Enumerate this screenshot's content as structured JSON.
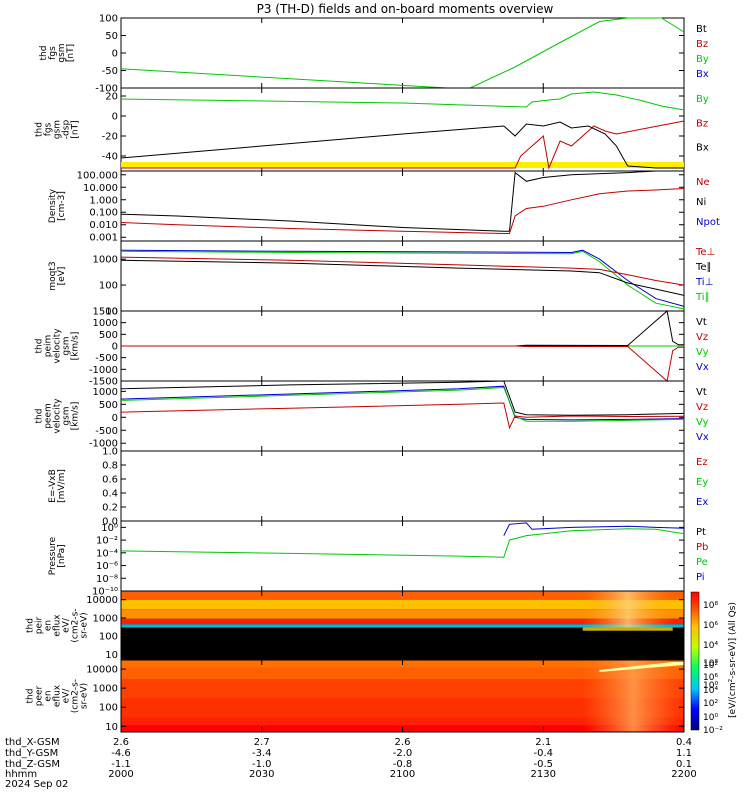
{
  "title": "P3 (TH-D) fields and on-board moments overview",
  "colors": {
    "black": "#000000",
    "red": "#c00000",
    "green": "#00c800",
    "blue": "#0000d0",
    "yellow": "#ffee00"
  },
  "chart_data": [
    {
      "type": "line",
      "ylabel": [
        "thd",
        "fgs",
        "gsm",
        "[nT]"
      ],
      "ylim": [
        -100,
        100
      ],
      "yticks": [
        "100",
        "50",
        "0",
        "-50",
        "-100"
      ],
      "ytick_values": [
        100,
        50,
        0,
        -50,
        -100
      ],
      "legend": [
        {
          "text": "Bt",
          "color": "black"
        },
        {
          "text": "Bz",
          "color": "red"
        },
        {
          "text": "By",
          "color": "green"
        },
        {
          "text": "Bx",
          "color": "blue"
        }
      ],
      "series": [
        {
          "color": "green",
          "x": [
            0,
            0.58,
            0.62,
            0.7,
            0.78,
            0.85,
            0.9,
            0.96,
            1.0
          ],
          "y": [
            -45,
            -100,
            -100,
            -40,
            30,
            90,
            120,
            120,
            60
          ]
        }
      ]
    },
    {
      "type": "line",
      "ylabel": [
        "thd",
        "fgs",
        "gsm",
        "-dsp",
        "[nT]"
      ],
      "ylim": [
        -55,
        28
      ],
      "yticks": [
        "20",
        "0",
        "-20",
        "-40"
      ],
      "ytick_values": [
        20,
        0,
        -20,
        -40
      ],
      "legend": [
        {
          "text": "By",
          "color": "green"
        },
        {
          "text": "Bz",
          "color": "red"
        },
        {
          "text": "Bx",
          "color": "black"
        }
      ],
      "flag_bar": "yellow",
      "series": [
        {
          "color": "green",
          "x": [
            0,
            0.5,
            0.72,
            0.73,
            0.76,
            0.78,
            0.8,
            0.84,
            0.88,
            0.92,
            0.96,
            1.0
          ],
          "y": [
            17,
            13,
            9,
            14,
            16,
            17,
            22,
            24,
            21,
            16,
            10,
            6
          ]
        },
        {
          "color": "red",
          "x": [
            0,
            0.7,
            0.71,
            0.75,
            0.76,
            0.78,
            0.8,
            0.82,
            0.84,
            0.86,
            0.88,
            1.0
          ],
          "y": [
            -52,
            -52,
            -40,
            -20,
            -52,
            -25,
            -30,
            -20,
            -10,
            -15,
            -18,
            -5
          ]
        },
        {
          "color": "black",
          "x": [
            0,
            0.25,
            0.5,
            0.68,
            0.7,
            0.72,
            0.75,
            0.78,
            0.8,
            0.83,
            0.86,
            0.88,
            0.9,
            0.95,
            1.0
          ],
          "y": [
            -42,
            -30,
            -18,
            -10,
            -20,
            -8,
            -10,
            -6,
            -12,
            -10,
            -18,
            -30,
            -50,
            -52,
            -52
          ]
        }
      ]
    },
    {
      "type": "line",
      "yscale": "log",
      "ylabel": [
        "Density",
        "[cm-3]"
      ],
      "ylim": [
        0.0005,
        200
      ],
      "yticks": [
        "100.000",
        "10.000",
        "1.000",
        "0.100",
        "0.010",
        "0.001"
      ],
      "ytick_values": [
        100,
        10,
        1,
        0.1,
        0.01,
        0.001
      ],
      "legend": [
        {
          "text": "Ne",
          "color": "red"
        },
        {
          "text": "Ni",
          "color": "black"
        },
        {
          "text": "Npot",
          "color": "blue"
        }
      ],
      "series": [
        {
          "color": "black",
          "x": [
            0,
            0.1,
            0.3,
            0.5,
            0.68,
            0.69,
            0.7,
            0.72,
            0.75,
            0.8,
            0.9,
            0.95,
            0.96,
            1.0
          ],
          "y": [
            0.07,
            0.05,
            0.02,
            0.006,
            0.003,
            0.003,
            150,
            30,
            60,
            100,
            150,
            200,
            200,
            200
          ]
        },
        {
          "color": "red",
          "x": [
            0,
            0.1,
            0.3,
            0.5,
            0.68,
            0.69,
            0.7,
            0.72,
            0.75,
            0.8,
            0.85,
            0.9,
            0.95,
            1.0
          ],
          "y": [
            0.015,
            0.01,
            0.005,
            0.003,
            0.002,
            0.002,
            0.05,
            0.2,
            0.3,
            1,
            3,
            5,
            6,
            8
          ]
        }
      ]
    },
    {
      "type": "line",
      "yscale": "log",
      "ylabel": [
        "moqt3",
        "[eV]"
      ],
      "ylim": [
        10,
        5000
      ],
      "yticks": [
        "1000",
        "100",
        "10"
      ],
      "ytick_values": [
        1000,
        100,
        10
      ],
      "legend": [
        {
          "text": "Te⊥",
          "color": "red"
        },
        {
          "text": "Te∥",
          "color": "black"
        },
        {
          "text": "Ti⊥",
          "color": "blue"
        },
        {
          "text": "Ti∥",
          "color": "green"
        }
      ],
      "series": [
        {
          "color": "blue",
          "x": [
            0,
            0.3,
            0.6,
            0.8,
            0.82,
            0.85,
            0.9,
            0.95,
            1.0
          ],
          "y": [
            2200,
            2000,
            1900,
            1800,
            2200,
            1000,
            150,
            30,
            15
          ]
        },
        {
          "color": "green",
          "x": [
            0,
            0.3,
            0.6,
            0.8,
            0.82,
            0.85,
            0.9,
            0.95,
            1.0
          ],
          "y": [
            2000,
            1800,
            1700,
            1600,
            2000,
            800,
            100,
            20,
            12
          ]
        },
        {
          "color": "red",
          "x": [
            0,
            0.3,
            0.6,
            0.8,
            0.85,
            0.9,
            0.95,
            1.0
          ],
          "y": [
            1200,
            900,
            600,
            450,
            400,
            250,
            150,
            100
          ]
        },
        {
          "color": "black",
          "x": [
            0,
            0.3,
            0.6,
            0.8,
            0.85,
            0.9,
            0.95,
            1.0
          ],
          "y": [
            900,
            700,
            450,
            350,
            300,
            120,
            70,
            40
          ]
        }
      ]
    },
    {
      "type": "line",
      "ylabel": [
        "thd",
        "peim",
        "velocity",
        "gsm",
        "[km/s]"
      ],
      "ylim": [
        -1500,
        1500
      ],
      "yticks": [
        "1500",
        "1000",
        "500",
        "0",
        "-500",
        "-1000",
        "-1500"
      ],
      "ytick_values": [
        1500,
        1000,
        500,
        0,
        -500,
        -1000,
        -1500
      ],
      "legend": [
        {
          "text": "Vt",
          "color": "black"
        },
        {
          "text": "Vz",
          "color": "red"
        },
        {
          "text": "Vy",
          "color": "green"
        },
        {
          "text": "Vx",
          "color": "blue"
        }
      ],
      "series": [
        {
          "color": "green",
          "x": [
            0,
            1.0
          ],
          "y": [
            0,
            0
          ]
        },
        {
          "color": "black",
          "x": [
            0,
            0.7,
            0.72,
            0.9,
            0.97,
            0.98,
            0.99,
            1.0
          ],
          "y": [
            0,
            0,
            30,
            20,
            1500,
            200,
            50,
            50
          ]
        },
        {
          "color": "red",
          "x": [
            0,
            0.7,
            0.72,
            0.9,
            0.97,
            0.98,
            0.99,
            1.0
          ],
          "y": [
            0,
            0,
            -20,
            -20,
            -1500,
            -200,
            -50,
            -50
          ]
        }
      ]
    },
    {
      "type": "line",
      "ylabel": [
        "thd",
        "peem",
        "velocity",
        "gsm",
        "[km/s]"
      ],
      "ylim": [
        -1300,
        1400
      ],
      "yticks": [
        "1000",
        "500",
        "0",
        "-500",
        "-1000"
      ],
      "ytick_values": [
        1000,
        500,
        0,
        -500,
        -1000
      ],
      "legend": [
        {
          "text": "Vt",
          "color": "black"
        },
        {
          "text": "Vz",
          "color": "red"
        },
        {
          "text": "Vy",
          "color": "green"
        },
        {
          "text": "Vx",
          "color": "blue"
        }
      ],
      "series": [
        {
          "color": "black",
          "x": [
            0,
            0.3,
            0.6,
            0.68,
            0.7,
            0.72,
            0.8,
            0.9,
            1.0
          ],
          "y": [
            1100,
            1250,
            1350,
            1400,
            200,
            100,
            80,
            100,
            150
          ]
        },
        {
          "color": "blue",
          "x": [
            0,
            0.3,
            0.6,
            0.68,
            0.7,
            0.72,
            0.8,
            0.9,
            1.0
          ],
          "y": [
            700,
            900,
            1100,
            1200,
            0,
            -80,
            -100,
            -80,
            -50
          ]
        },
        {
          "color": "green",
          "x": [
            0,
            0.3,
            0.6,
            0.68,
            0.7,
            0.72,
            0.8,
            0.9,
            1.0
          ],
          "y": [
            650,
            850,
            1050,
            1150,
            50,
            -150,
            -150,
            -120,
            -80
          ]
        },
        {
          "color": "red",
          "x": [
            0,
            0.3,
            0.6,
            0.68,
            0.69,
            0.7,
            0.72,
            0.8,
            0.9,
            1.0
          ],
          "y": [
            200,
            350,
            500,
            550,
            -400,
            50,
            0,
            50,
            30,
            40
          ]
        }
      ]
    },
    {
      "type": "line",
      "ylabel": [
        "E=-VxB",
        "[mV/m]"
      ],
      "ylim": [
        0,
        1
      ],
      "yticks": [
        "1.0",
        "0.8",
        "0.6",
        "0.4",
        "0.2",
        "0.0"
      ],
      "ytick_values": [
        1,
        0.8,
        0.6,
        0.4,
        0.2,
        0
      ],
      "legend": [
        {
          "text": "Ez",
          "color": "red"
        },
        {
          "text": "Ey",
          "color": "green"
        },
        {
          "text": "Ex",
          "color": "blue"
        }
      ],
      "series": []
    },
    {
      "type": "line",
      "yscale": "log",
      "ylabel": [
        "Pressure",
        "[nPa]"
      ],
      "ylim": [
        1e-10,
        10
      ],
      "yticks": [
        "10⁰",
        "10⁻²",
        "10⁻⁴",
        "10⁻⁶",
        "10⁻⁸",
        "10⁻¹⁰"
      ],
      "ytick_values": [
        1,
        0.01,
        0.0001,
        1e-06,
        1e-08,
        1e-10
      ],
      "legend": [
        {
          "text": "Pt",
          "color": "black"
        },
        {
          "text": "Pb",
          "color": "red"
        },
        {
          "text": "Pe",
          "color": "green"
        },
        {
          "text": "Pi",
          "color": "blue"
        }
      ],
      "series": [
        {
          "color": "green",
          "x": [
            0,
            0.3,
            0.6,
            0.68,
            0.69,
            0.72,
            0.8,
            0.9,
            0.95,
            1.0
          ],
          "y": [
            0.0002,
            8e-05,
            3e-05,
            2e-05,
            0.01,
            0.05,
            0.3,
            0.6,
            0.5,
            0.1
          ]
        },
        {
          "color": "blue",
          "x": [
            0.68,
            0.69,
            0.72,
            0.73,
            0.8,
            0.9,
            0.95,
            1.0
          ],
          "y": [
            0.05,
            3,
            5,
            0.5,
            1,
            1.5,
            1,
            0.7
          ]
        }
      ]
    },
    {
      "type": "heatmap",
      "ylabel": [
        "thd",
        "peir",
        "en",
        "eflux",
        "eV/",
        "(cm2-s-",
        "sr-eV)"
      ],
      "ylim": [
        5,
        30000
      ],
      "yscale": "log",
      "yticks": [
        "10000",
        "1000",
        "100",
        "10"
      ],
      "ytick_values": [
        10000,
        1000,
        100,
        10
      ]
    },
    {
      "type": "heatmap",
      "ylabel": [
        "thd",
        "peer",
        "en",
        "eflux",
        "eV/",
        "(cm2-s-",
        "sr-eV)"
      ],
      "ylim": [
        5,
        30000
      ],
      "yscale": "log",
      "yticks": [
        "10000",
        "1000",
        "100",
        "10"
      ],
      "ytick_values": [
        10000,
        1000,
        100,
        10
      ]
    }
  ],
  "colorbar": {
    "ticks": [
      "10⁸",
      "10⁶",
      "10⁴",
      "10²",
      "10⁰",
      "10⁸",
      "10⁶",
      "10⁴",
      "10²",
      "10⁰",
      "10⁻²"
    ],
    "label": "[eV/(cm²-s-sr-eV)]  (All Qs)"
  },
  "xaxis": {
    "rows": [
      {
        "label": "thd_X-GSM",
        "values": [
          "2.6",
          "2.7",
          "2.6",
          "2.1",
          "0.4"
        ]
      },
      {
        "label": "thd_Y-GSM",
        "values": [
          "-4.6",
          "-3.4",
          "-2.0",
          "-0.4",
          "1.1"
        ]
      },
      {
        "label": "thd_Z-GSM",
        "values": [
          "-1.1",
          "-1.0",
          "-0.8",
          "-0.5",
          "0.1"
        ]
      },
      {
        "label": "hhmm",
        "values": [
          "2000",
          "2030",
          "2100",
          "2130",
          "2200"
        ]
      }
    ],
    "date": "2024 Sep 02"
  }
}
